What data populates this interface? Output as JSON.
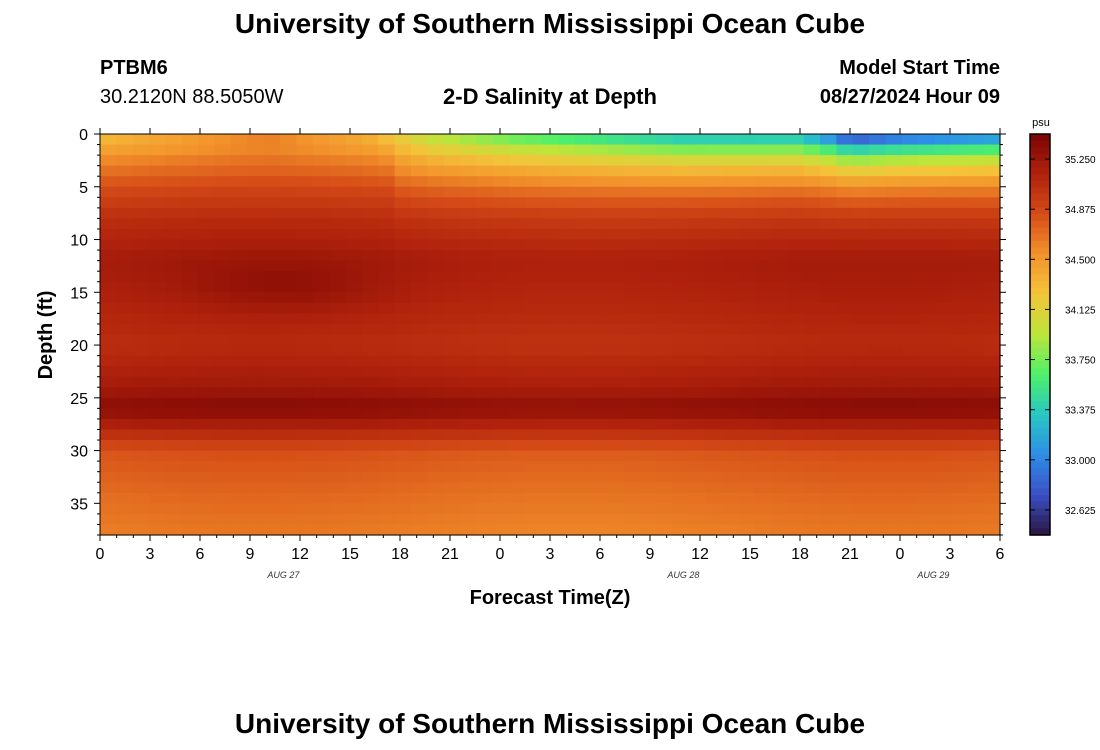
{
  "page": {
    "title_top": "University of Southern Mississippi Ocean Cube",
    "title_bottom": "University of Southern Mississippi Ocean Cube",
    "station_id": "PTBM6",
    "station_coords": "30.2120N  88.5050W",
    "plot_title": "2-D Salinity at Depth",
    "model_start_label": "Model Start Time",
    "model_start_value": "08/27/2024 Hour 09"
  },
  "chart_data": {
    "type": "heatmap",
    "title": "2-D Salinity at Depth",
    "xlabel": "Forecast Time(Z)",
    "ylabel": "Depth (ft)",
    "x_range_hours": [
      0,
      54
    ],
    "x_ticks": [
      "0",
      "3",
      "6",
      "9",
      "12",
      "15",
      "18",
      "21",
      "0",
      "3",
      "6",
      "9",
      "12",
      "15",
      "18",
      "21",
      "0",
      "3",
      "6"
    ],
    "date_labels": [
      {
        "text": "AUG 27",
        "hour": 11
      },
      {
        "text": "AUG 28",
        "hour": 35
      },
      {
        "text": "AUG 29",
        "hour": 50
      }
    ],
    "ylim": [
      0,
      38
    ],
    "y_ticks": [
      "0",
      "5",
      "10",
      "15",
      "20",
      "25",
      "30",
      "35"
    ],
    "colorbar": {
      "unit": "psu",
      "range": [
        32.4375,
        35.4375
      ],
      "ticks": [
        "35.250",
        "34.875",
        "34.500",
        "34.125",
        "33.750",
        "33.375",
        "33.000",
        "32.625"
      ],
      "colormap": [
        "#281540",
        "#3b4fc5",
        "#2f8ee8",
        "#27c7c4",
        "#4ff06a",
        "#bde53a",
        "#f4c43a",
        "#f3932b",
        "#d54b17",
        "#b0220c",
        "#7a0403"
      ]
    },
    "salinity_profile_description": "Mostly 34.6-35.4 psu; fresher surface layer (<33 psu) after hour 20; maximum near 25-27 ft",
    "depth_profile": [
      {
        "depth": 0,
        "value": 34.3
      },
      {
        "depth": 2,
        "value": 34.6
      },
      {
        "depth": 5,
        "value": 34.85
      },
      {
        "depth": 8,
        "value": 35.05
      },
      {
        "depth": 12,
        "value": 35.2
      },
      {
        "depth": 15,
        "value": 35.15
      },
      {
        "depth": 20,
        "value": 35.05
      },
      {
        "depth": 24,
        "value": 35.2
      },
      {
        "depth": 26,
        "value": 35.35
      },
      {
        "depth": 28,
        "value": 35.1
      },
      {
        "depth": 30,
        "value": 34.8
      },
      {
        "depth": 34,
        "value": 34.7
      },
      {
        "depth": 38,
        "value": 34.62
      }
    ],
    "surface_freshening": [
      {
        "hour": 0,
        "value": 34.3
      },
      {
        "hour": 10,
        "value": 34.7
      },
      {
        "hour": 16,
        "value": 34.4
      },
      {
        "hour": 20,
        "value": 33.9
      },
      {
        "hour": 25,
        "value": 33.6
      },
      {
        "hour": 35,
        "value": 33.2
      },
      {
        "hour": 42,
        "value": 33.2
      },
      {
        "hour": 44,
        "value": 32.8
      },
      {
        "hour": 45,
        "value": 32.5
      },
      {
        "hour": 48,
        "value": 32.7
      },
      {
        "hour": 54,
        "value": 32.9
      }
    ],
    "salty_pocket": {
      "hour": 11,
      "depth": 14.5,
      "value": 35.25
    }
  }
}
